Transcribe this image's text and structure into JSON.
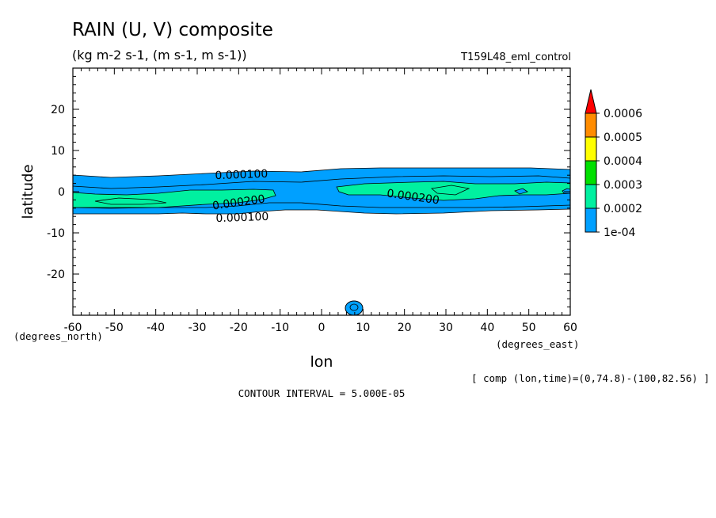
{
  "header": {
    "title": "RAIN (U, V) composite",
    "units": "(kg m-2 s-1, (m s-1, m s-1))",
    "run": "T159L48_eml_control"
  },
  "footer": {
    "comp": "[ comp (lon,time)=(0,74.8)-(100,82.56) ]",
    "contour_interval": "CONTOUR INTERVAL = 5.000E-05"
  },
  "colors": {
    "level_1e4": "#00a0ff",
    "level_2e4": "#00f0a0",
    "level_3e4": "#00e000",
    "level_4e4": "#ffff00",
    "level_5e4": "#ffa000",
    "level_6e4": "#ff0000"
  },
  "chart_data": {
    "type": "contour",
    "xlabel": "lon",
    "ylabel": "latitude",
    "x_units": "(degrees_east)",
    "y_units": "(degrees_north)",
    "xlim": [
      -60,
      60
    ],
    "ylim": [
      -30,
      30
    ],
    "xticks": [
      "-60",
      "-50",
      "-40",
      "-30",
      "-20",
      "-10",
      "0",
      "10",
      "20",
      "30",
      "40",
      "50",
      "60"
    ],
    "yticks": [
      "20",
      "10",
      "0",
      "-10",
      "-20"
    ],
    "contour_labels": [
      "0.000100",
      "0.000200",
      "0.000200",
      "0.000100"
    ],
    "colorbar": {
      "labels": [
        "0.0006",
        "0.0005",
        "0.0004",
        "0.0003",
        "0.0002",
        "1e-04"
      ],
      "colors": [
        "#ff8c00",
        "#ffff00",
        "#00e000",
        "#00f0a0",
        "#00a0ff"
      ],
      "top_arrow_color": "#ff0000"
    }
  }
}
